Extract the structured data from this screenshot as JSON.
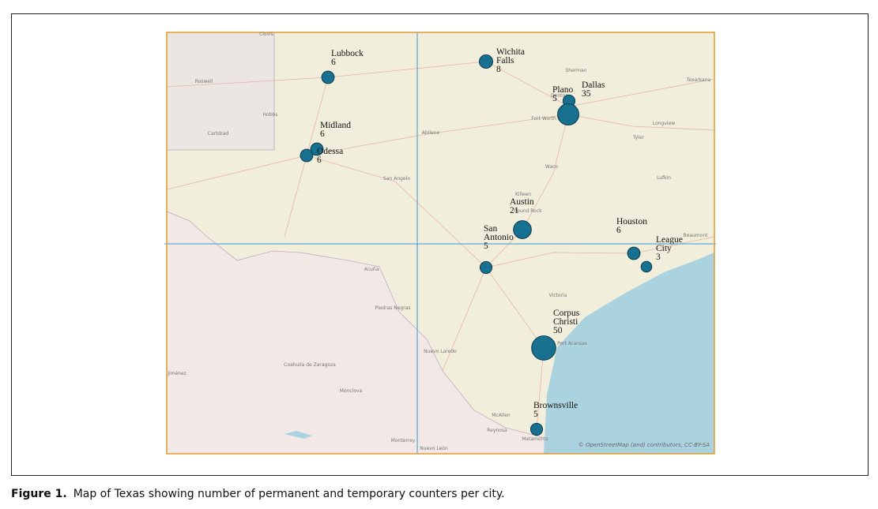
{
  "figure": {
    "cities": [
      {
        "name": "Lubbock",
        "count": 6
      },
      {
        "name": "Wichita Falls",
        "count": 8
      },
      {
        "name": "Plano",
        "count": 5
      },
      {
        "name": "Dallas",
        "count": 35
      },
      {
        "name": "Midland",
        "count": 6
      },
      {
        "name": "Odessa",
        "count": 6
      },
      {
        "name": "Austin",
        "count": 21
      },
      {
        "name": "San Antonio",
        "count": 5
      },
      {
        "name": "Houston",
        "count": 6
      },
      {
        "name": "League City",
        "count": 3
      },
      {
        "name": "Corpus Christi",
        "count": 50
      },
      {
        "name": "Brownsville",
        "count": 5
      }
    ],
    "map_labels": [
      "Clovis",
      "Roswell",
      "Hobbs",
      "Carlsbad",
      "Abilene",
      "San Angelo",
      "Sherman",
      "Texarkana",
      "Denton",
      "Fort Worth",
      "Longview",
      "Tyler",
      "Waco",
      "Lufkin",
      "Killeen",
      "Round Rock",
      "Beaumont",
      "Victoria",
      "Port Aransas",
      "Piedras Negras",
      "Acuña",
      "Nuevo Laredo",
      "Coahuila de Zaragoza",
      "Monclova",
      "Monterrey",
      "Nuevo León",
      "McAllen",
      "Reynosa",
      "Matamoros",
      "Jiménez"
    ],
    "attribution": "© OpenStreetMap (and) contributors, CC-BY-SA",
    "caption": {
      "label": "Figure 1.",
      "text": "Map of Texas showing number of permanent and temporary counters per city."
    }
  }
}
